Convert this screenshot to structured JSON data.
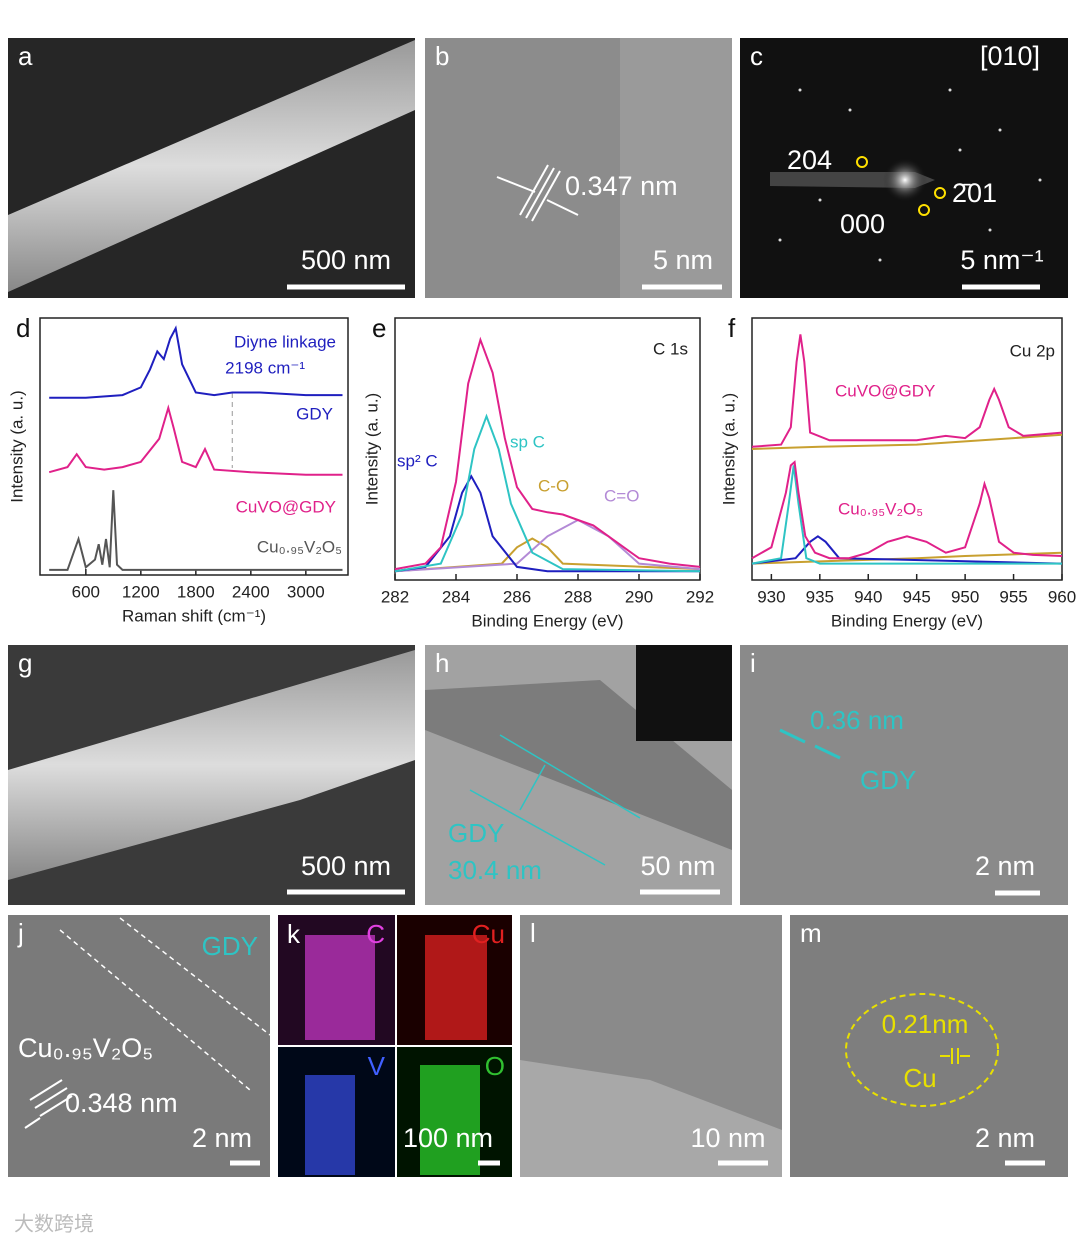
{
  "panels": {
    "a": {
      "label": "a",
      "scale": "500 nm"
    },
    "b": {
      "label": "b",
      "spacing": "0.347 nm",
      "scale": "5 nm"
    },
    "c": {
      "label": "c",
      "zone": "[010]",
      "spots": [
        "204",
        "2̄01",
        "000"
      ],
      "scale": "5 nm⁻¹"
    },
    "g": {
      "label": "g",
      "scale": "500 nm"
    },
    "h": {
      "label": "h",
      "layer": "GDY",
      "thickness": "30.4 nm",
      "scale": "50 nm"
    },
    "i": {
      "label": "i",
      "spacing": "0.36 nm",
      "layer": "GDY",
      "scale": "2 nm"
    },
    "j": {
      "label": "j",
      "layer": "GDY",
      "phase": "Cu₀.₉₅V₂O₅",
      "spacing": "0.348 nm",
      "scale": "2 nm"
    },
    "k": {
      "label": "k",
      "elements": [
        "C",
        "Cu",
        "V",
        "O"
      ],
      "scale": "100 nm"
    },
    "l": {
      "label": "l",
      "scale": "10 nm"
    },
    "m": {
      "label": "m",
      "spacing": "0.21nm",
      "element": "Cu",
      "scale": "2 nm"
    }
  },
  "watermark": "大数跨境",
  "chart_data": [
    {
      "type": "line",
      "label": "d",
      "xlabel": "Raman shift (cm⁻¹)",
      "ylabel": "Intensity (a. u.)",
      "xlim": [
        100,
        3460
      ],
      "ylim": [
        0,
        10
      ],
      "xticks": [
        600,
        1200,
        1800,
        2400,
        3000
      ],
      "ref_x": 2198,
      "annotations": [
        {
          "text": "Diyne linkage",
          "color": "#1f1fbf"
        },
        {
          "text": "2198 cm⁻¹",
          "color": "#1f1fbf"
        }
      ],
      "series": [
        {
          "name": "GDY",
          "color": "#1f1fbf",
          "x": [
            200,
            600,
            1000,
            1200,
            1300,
            1380,
            1450,
            1520,
            1580,
            1650,
            1800,
            2000,
            2198,
            2500,
            3000,
            3400
          ],
          "values": [
            6.9,
            6.9,
            7.0,
            7.3,
            8.0,
            8.7,
            8.4,
            9.2,
            9.6,
            8.2,
            7.1,
            7.0,
            7.1,
            7.1,
            7.0,
            7.0
          ]
        },
        {
          "name": "CuVO@GDY",
          "color": "#e0218a",
          "x": [
            200,
            400,
            500,
            600,
            800,
            1000,
            1200,
            1400,
            1500,
            1560,
            1650,
            1800,
            1900,
            2000,
            2400,
            3000,
            3400
          ],
          "values": [
            4.0,
            4.2,
            4.7,
            4.2,
            4.1,
            4.2,
            4.4,
            5.3,
            6.5,
            5.7,
            4.4,
            4.2,
            4.9,
            4.1,
            4.0,
            3.9,
            3.9
          ]
        },
        {
          "name": "Cu₀.₉₅V₂O₅",
          "color": "#555555",
          "x": [
            200,
            400,
            480,
            520,
            600,
            700,
            740,
            780,
            820,
            860,
            900,
            940,
            1000,
            1200,
            2000,
            3400
          ],
          "values": [
            0.2,
            0.2,
            1.0,
            1.4,
            0.3,
            0.6,
            1.2,
            0.4,
            1.4,
            0.3,
            3.3,
            0.4,
            0.2,
            0.2,
            0.2,
            0.2
          ]
        }
      ]
    },
    {
      "type": "line",
      "label": "e",
      "title": "C 1s",
      "xlabel": "Binding Energy (eV)",
      "ylabel": "Intensity (a. u.)",
      "xlim": [
        282,
        292
      ],
      "ylim": [
        0,
        12
      ],
      "xticks": [
        282,
        284,
        286,
        288,
        290,
        292
      ],
      "series": [
        {
          "color": "#c8a030",
          "x": [
            282,
            285.5,
            286,
            286.5,
            287,
            287.5,
            292
          ],
          "values": [
            0.4,
            0.75,
            1.5,
            1.9,
            1.5,
            0.75,
            0.5
          ],
          "name": "C-O"
        },
        {
          "color": "#b38ad6",
          "x": [
            282,
            286,
            287,
            288,
            289,
            290,
            292
          ],
          "values": [
            0.4,
            0.75,
            2.0,
            2.75,
            2.0,
            0.75,
            0.5
          ],
          "name": "C=O"
        },
        {
          "color": "#1f1fbf",
          "x": [
            282,
            283,
            283.8,
            284.2,
            284.5,
            284.8,
            285.2,
            286,
            287,
            292
          ],
          "values": [
            0.4,
            0.6,
            2.0,
            4.0,
            4.75,
            4.0,
            2.0,
            0.6,
            0.4,
            0.4
          ],
          "name": "sp² C"
        },
        {
          "color": "#2ec4c4",
          "x": [
            282,
            283.5,
            284.2,
            284.6,
            285,
            285.4,
            285.8,
            286.5,
            287.5,
            292
          ],
          "values": [
            0.4,
            0.75,
            3.0,
            6.0,
            7.5,
            6.0,
            3.5,
            1.25,
            0.5,
            0.4
          ],
          "name": "sp C"
        },
        {
          "color": "#e0218a",
          "x": [
            282,
            283,
            283.5,
            284,
            284.4,
            284.8,
            285.2,
            285.6,
            286,
            286.5,
            287,
            287.5,
            288,
            288.5,
            289,
            289.5,
            290,
            291,
            292
          ],
          "values": [
            0.5,
            0.75,
            1.5,
            4.5,
            9.0,
            11.0,
            9.5,
            6.5,
            4.25,
            3.25,
            3.1,
            3.0,
            2.75,
            2.5,
            2.0,
            1.5,
            1.0,
            0.75,
            0.6
          ]
        }
      ]
    },
    {
      "type": "line",
      "label": "f",
      "title": "Cu 2p",
      "xlabel": "Binding Energy (eV)",
      "ylabel": "Intensity (a. u.)",
      "xlim": [
        928,
        960
      ],
      "ylim": [
        0,
        12
      ],
      "xticks": [
        930,
        935,
        940,
        945,
        950,
        955,
        960
      ],
      "series": [
        {
          "color": "#c8a030",
          "x": [
            928,
            935,
            945,
            950,
            955,
            960
          ],
          "values": [
            6.0,
            6.1,
            6.2,
            6.35,
            6.5,
            6.65
          ]
        },
        {
          "name": "CuVO@GDY",
          "color": "#e0218a",
          "x": [
            928,
            931,
            932,
            932.6,
            933,
            933.4,
            934,
            936,
            940,
            945,
            948,
            950,
            951.5,
            952.5,
            953,
            953.5,
            954.5,
            956,
            960
          ],
          "values": [
            6.1,
            6.2,
            7.0,
            10.0,
            11.25,
            10.0,
            6.75,
            6.4,
            6.4,
            6.4,
            6.6,
            6.5,
            7.0,
            8.25,
            8.75,
            8.25,
            7.0,
            6.6,
            6.75
          ]
        },
        {
          "color": "#c8a030",
          "x": [
            928,
            935,
            945,
            950,
            960
          ],
          "values": [
            0.75,
            0.85,
            1.0,
            1.1,
            1.25
          ]
        },
        {
          "color": "#1f1fbf",
          "x": [
            928,
            932.5,
            934,
            934.8,
            935.6,
            937,
            960
          ],
          "values": [
            0.75,
            1.0,
            1.75,
            2.0,
            1.75,
            1.0,
            0.75
          ]
        },
        {
          "color": "#2ec4c4",
          "x": [
            928,
            931,
            931.8,
            932.3,
            932.8,
            933.6,
            935,
            960
          ],
          "values": [
            0.75,
            1.0,
            3.5,
            5.25,
            3.5,
            1.0,
            0.75,
            0.75
          ]
        },
        {
          "name": "Cu₀.₉₅V₂O₅",
          "color": "#e0218a",
          "x": [
            928,
            930,
            931.5,
            932,
            932.4,
            932.8,
            933.5,
            934.5,
            936,
            938,
            940,
            942,
            944,
            946,
            948,
            950,
            951.5,
            952,
            952.5,
            953.5,
            955,
            957,
            960
          ],
          "values": [
            1.0,
            1.5,
            4.0,
            5.25,
            5.4,
            4.0,
            2.0,
            1.25,
            1.0,
            1.0,
            1.25,
            1.75,
            2.0,
            1.75,
            1.25,
            1.5,
            3.5,
            4.4,
            3.75,
            1.75,
            1.25,
            1.15,
            1.1
          ]
        }
      ]
    }
  ]
}
